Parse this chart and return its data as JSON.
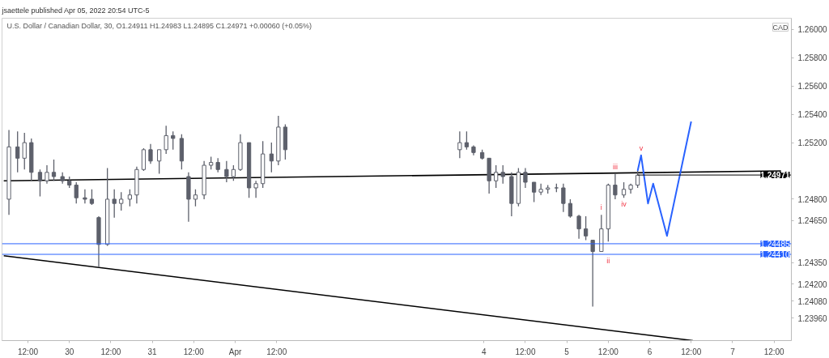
{
  "chart_data": {
    "type": "candlestick",
    "title": "jsaettele published Apr 05, 2022 20:54 UTC-5",
    "subtitle": "U.S. Dollar / Canadian Dollar, 30, O1.24911 H1.24983 L1.24895 C1.24971 +0.00060 (+0.05%)",
    "ylabel": "CAD",
    "color": "#5d606b",
    "x": [
      "2022-03-29T06:30",
      "2022-03-29T09:00",
      "2022-03-29T11:00",
      "2022-03-29T13:00",
      "2022-03-29T15:30",
      "2022-03-29T17:30",
      "2022-03-29T19:30",
      "2022-03-29T22:00",
      "2022-03-30T00:00",
      "2022-03-30T02:00",
      "2022-03-30T04:30",
      "2022-03-30T06:30",
      "2022-03-30T08:30",
      "2022-03-30T11:00",
      "2022-03-30T13:00",
      "2022-03-30T15:00",
      "2022-03-30T17:30",
      "2022-03-30T19:30",
      "2022-03-30T21:30",
      "2022-03-30T23:30",
      "2022-03-31T02:00",
      "2022-03-31T04:00",
      "2022-03-31T06:00",
      "2022-03-31T08:30",
      "2022-03-31T10:30",
      "2022-03-31T12:30",
      "2022-03-31T15:00",
      "2022-03-31T17:00",
      "2022-03-31T19:00",
      "2022-03-31T21:30",
      "2022-03-31T23:30",
      "2022-04-01T01:30",
      "2022-04-01T04:00",
      "2022-04-01T06:00",
      "2022-04-01T08:00",
      "2022-04-01T10:30",
      "2022-04-01T12:30",
      "2022-04-01T14:30",
      "2022-04-03T17:00",
      "2022-04-03T19:00",
      "2022-04-03T21:00",
      "2022-04-03T23:30",
      "2022-04-04T01:30",
      "2022-04-04T03:30",
      "2022-04-04T05:30",
      "2022-04-04T08:00",
      "2022-04-04T10:00",
      "2022-04-04T12:00",
      "2022-04-04T14:30",
      "2022-04-04T16:30",
      "2022-04-04T18:30",
      "2022-04-04T21:00",
      "2022-04-04T23:00",
      "2022-04-05T01:00",
      "2022-04-05T03:30",
      "2022-04-05T05:30",
      "2022-04-05T07:30",
      "2022-04-05T10:00",
      "2022-04-05T12:00",
      "2022-04-05T14:00",
      "2022-04-05T16:30",
      "2022-04-05T18:30",
      "2022-04-05T20:30"
    ],
    "ohlc": [
      [
        1.248,
        1.2529,
        1.2469,
        1.2517
      ],
      [
        1.2517,
        1.2528,
        1.2499,
        1.2509
      ],
      [
        1.2509,
        1.2527,
        1.2501,
        1.252
      ],
      [
        1.252,
        1.2523,
        1.2493,
        1.2499
      ],
      [
        1.2499,
        1.2501,
        1.2482,
        1.2493
      ],
      [
        1.2493,
        1.2504,
        1.2491,
        1.2499
      ],
      [
        1.2499,
        1.2508,
        1.2493,
        1.2496
      ],
      [
        1.2496,
        1.2499,
        1.2491,
        1.2493
      ],
      [
        1.2493,
        1.2496,
        1.2488,
        1.249
      ],
      [
        1.249,
        1.2492,
        1.2477,
        1.2481
      ],
      [
        1.2481,
        1.2487,
        1.2477,
        1.248
      ],
      [
        1.248,
        1.2487,
        1.2476,
        1.2477
      ],
      [
        1.2467,
        1.2468,
        1.2432,
        1.2448
      ],
      [
        1.2448,
        1.2502,
        1.2447,
        1.248
      ],
      [
        1.248,
        1.2487,
        1.2467,
        1.2477
      ],
      [
        1.2477,
        1.2485,
        1.2472,
        1.248
      ],
      [
        1.248,
        1.2487,
        1.2475,
        1.2483
      ],
      [
        1.2483,
        1.2503,
        1.2477,
        1.2501
      ],
      [
        1.2501,
        1.2516,
        1.25,
        1.2515
      ],
      [
        1.2515,
        1.2519,
        1.2505,
        1.2507
      ],
      [
        1.2507,
        1.2515,
        1.2498,
        1.2515
      ],
      [
        1.2515,
        1.2532,
        1.2512,
        1.2525
      ],
      [
        1.2525,
        1.2528,
        1.2515,
        1.2523
      ],
      [
        1.2523,
        1.2526,
        1.2501,
        1.2507
      ],
      [
        1.2496,
        1.2499,
        1.2464,
        1.248
      ],
      [
        1.248,
        1.2487,
        1.2475,
        1.2483
      ],
      [
        1.2483,
        1.2507,
        1.248,
        1.2504
      ],
      [
        1.2504,
        1.251,
        1.2501,
        1.2506
      ],
      [
        1.2506,
        1.2509,
        1.2499,
        1.2501
      ],
      [
        1.2501,
        1.2507,
        1.2492,
        1.2496
      ],
      [
        1.2496,
        1.2504,
        1.2493,
        1.2501
      ],
      [
        1.2501,
        1.2526,
        1.25,
        1.252
      ],
      [
        1.252,
        1.252,
        1.2481,
        1.2488
      ],
      [
        1.2488,
        1.2493,
        1.2481,
        1.2491
      ],
      [
        1.2491,
        1.2521,
        1.2488,
        1.2512
      ],
      [
        1.2512,
        1.252,
        1.2499,
        1.2507
      ],
      [
        1.2507,
        1.2539,
        1.2504,
        1.2531
      ],
      [
        1.2531,
        1.2533,
        1.2508,
        1.2515
      ],
      [
        1.2515,
        1.2528,
        1.2509,
        1.252
      ],
      [
        1.252,
        1.2528,
        1.2515,
        1.2517
      ],
      [
        1.2517,
        1.2518,
        1.2511,
        1.2513
      ],
      [
        1.2513,
        1.2515,
        1.2508,
        1.2509
      ],
      [
        1.2509,
        1.2509,
        1.2484,
        1.2493
      ],
      [
        1.2493,
        1.2504,
        1.2488,
        1.2499
      ],
      [
        1.2499,
        1.2504,
        1.2491,
        1.2496
      ],
      [
        1.2496,
        1.2499,
        1.2468,
        1.2477
      ],
      [
        1.2477,
        1.2502,
        1.2475,
        1.2499
      ],
      [
        1.2499,
        1.2502,
        1.2488,
        1.2492
      ],
      [
        1.2492,
        1.2492,
        1.2478,
        1.2485
      ],
      [
        1.2485,
        1.2491,
        1.2483,
        1.2487
      ],
      [
        1.2487,
        1.249,
        1.2484,
        1.2488
      ],
      [
        1.2488,
        1.2491,
        1.2485,
        1.2488
      ],
      [
        1.2488,
        1.2491,
        1.2471,
        1.2477
      ],
      [
        1.2477,
        1.248,
        1.2467,
        1.2468
      ],
      [
        1.2468,
        1.2469,
        1.2452,
        1.2459
      ],
      [
        1.2459,
        1.2468,
        1.2451,
        1.2454
      ],
      [
        1.2451,
        1.2451,
        1.2404,
        1.2443
      ],
      [
        1.2443,
        1.2469,
        1.2443,
        1.2459
      ],
      [
        1.2459,
        1.2491,
        1.245,
        1.249
      ],
      [
        1.249,
        1.2498,
        1.248,
        1.2483
      ],
      [
        1.2483,
        1.2492,
        1.2481,
        1.2487
      ],
      [
        1.2487,
        1.2491,
        1.2484,
        1.249
      ],
      [
        1.249,
        1.25,
        1.2488,
        1.2497
      ]
    ],
    "series": [
      {
        "type": "line",
        "color": "#000000",
        "x": [
          "2022-03-29T05:00",
          "2022-04-07T14:00"
        ],
        "values": [
          1.2493,
          1.25
        ]
      },
      {
        "type": "line",
        "color": "#000000",
        "x": [
          "2022-03-29T05:00",
          "2022-04-06T12:30"
        ],
        "values": [
          1.244,
          1.238
        ]
      },
      {
        "type": "line",
        "color": "#2962ff",
        "x": [
          "2022-04-05T20:30",
          "2022-04-05T21:30",
          "2022-04-05T23:30",
          "2022-04-06T01:00",
          "2022-04-06T05:00",
          "2022-04-06T12:00"
        ],
        "values": [
          1.25,
          1.2511,
          1.2477,
          1.2491,
          1.2454,
          1.2535
        ]
      }
    ],
    "xlim": [
      "2022-03-29T04:30",
      "2022-04-07T17:00"
    ],
    "ylim": [
      1.238,
      1.2608
    ],
    "xticks": [
      {
        "value": "2022-03-29T12:00",
        "label": "12:00"
      },
      {
        "value": "2022-03-30",
        "label": "30"
      },
      {
        "value": "2022-03-30T12:00",
        "label": "12:00"
      },
      {
        "value": "2022-03-31",
        "label": "31"
      },
      {
        "value": "2022-03-31T12:00",
        "label": "12:00"
      },
      {
        "value": "2022-04-01",
        "label": "Apr"
      },
      {
        "value": "2022-04-01T12:00",
        "label": "12:00"
      },
      {
        "value": "2022-04-04",
        "label": "4"
      },
      {
        "value": "2022-04-04T12:00",
        "label": "12:00"
      },
      {
        "value": "2022-04-05",
        "label": "5"
      },
      {
        "value": "2022-04-05T12:00",
        "label": "12:00"
      },
      {
        "value": "2022-04-06",
        "label": "6"
      },
      {
        "value": "2022-04-06T12:00",
        "label": "12:00"
      },
      {
        "value": "2022-04-07",
        "label": "7"
      },
      {
        "value": "2022-04-07T12:00",
        "label": "12:00"
      }
    ],
    "yticks": [
      {
        "value": 1.26,
        "label": "1.26000"
      },
      {
        "value": 1.258,
        "label": "1.25800"
      },
      {
        "value": 1.256,
        "label": "1.25600"
      },
      {
        "value": 1.254,
        "label": "1.25400"
      },
      {
        "value": 1.252,
        "label": "1.25200"
      },
      {
        "value": 1.248,
        "label": "1.24800"
      },
      {
        "value": 1.2465,
        "label": "1.24650"
      },
      {
        "value": 1.2435,
        "label": "1.24350"
      },
      {
        "value": 1.242,
        "label": "1.24200"
      },
      {
        "value": 1.2408,
        "label": "1.24080"
      },
      {
        "value": 1.2396,
        "label": "1.23960"
      }
    ],
    "ref_lines": [
      {
        "axis": "y",
        "value": 1.24485,
        "label": "1.24485",
        "color": "#2962ff"
      },
      {
        "axis": "y",
        "value": 1.2441,
        "label": "1.24410",
        "color": "#2962ff"
      }
    ],
    "annotations": [
      {
        "text": "1.24971",
        "x": "2022-04-05T20:30",
        "y": 1.24971
      },
      {
        "text": "i",
        "x": "2022-04-05T10:00",
        "y": 1.2469
      },
      {
        "text": "ii",
        "x": "2022-04-05T12:00",
        "y": 1.2441
      },
      {
        "text": "iii",
        "x": "2022-04-05T14:00",
        "y": 1.2498
      },
      {
        "text": "iv",
        "x": "2022-04-05T16:30",
        "y": 1.2481
      },
      {
        "text": "v",
        "x": "2022-04-05T21:30",
        "y": 1.2511
      }
    ]
  }
}
